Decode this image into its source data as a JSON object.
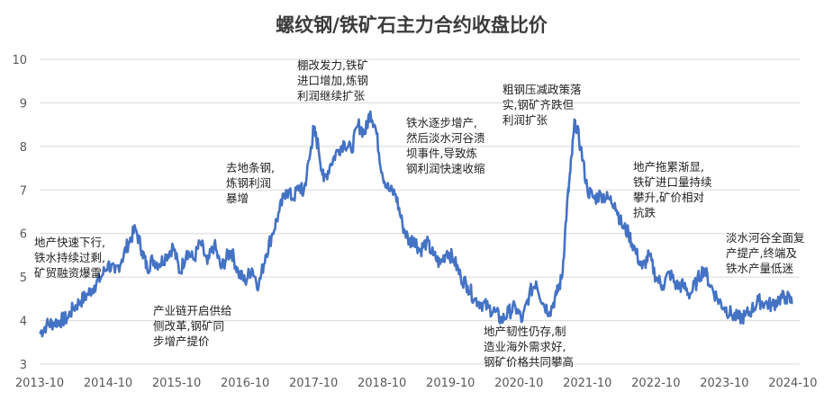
{
  "chart_data": {
    "type": "line",
    "title": "螺纹钢/铁矿石主力合约收盘比价",
    "xlabel": "",
    "ylabel": "",
    "ylim": [
      3,
      10
    ],
    "yticks": [
      3,
      4,
      5,
      6,
      7,
      8,
      9,
      10
    ],
    "xlim": [
      2013.75,
      2024.85
    ],
    "xticks": [
      {
        "label": "2013-10",
        "value": 2013.75
      },
      {
        "label": "2014-10",
        "value": 2014.75
      },
      {
        "label": "2015-10",
        "value": 2015.75
      },
      {
        "label": "2016-10",
        "value": 2016.75
      },
      {
        "label": "2017-10",
        "value": 2017.75
      },
      {
        "label": "2018-10",
        "value": 2018.75
      },
      {
        "label": "2019-10",
        "value": 2019.75
      },
      {
        "label": "2020-10",
        "value": 2020.75
      },
      {
        "label": "2021-10",
        "value": 2021.75
      },
      {
        "label": "2022-10",
        "value": 2022.75
      },
      {
        "label": "2023-10",
        "value": 2023.75
      },
      {
        "label": "2024-10",
        "value": 2024.75
      }
    ],
    "grid": "horizontal",
    "legend": "none",
    "color": "#4472c4",
    "series": [
      {
        "x": [
          2013.75,
          2013.85,
          2013.95,
          2014.05,
          2014.15,
          2014.25,
          2014.35,
          2014.45,
          2014.55,
          2014.65,
          2014.75,
          2014.85,
          2014.95,
          2015.05,
          2015.15,
          2015.25,
          2015.32,
          2015.4,
          2015.5,
          2015.6,
          2015.7,
          2015.8,
          2015.9,
          2016.0,
          2016.1,
          2016.2,
          2016.3,
          2016.4,
          2016.5,
          2016.55,
          2016.65,
          2016.75,
          2016.85,
          2016.95,
          2017.05,
          2017.15,
          2017.25,
          2017.35,
          2017.45,
          2017.55,
          2017.6,
          2017.7,
          2017.75,
          2017.82,
          2017.9,
          2018.0,
          2018.1,
          2018.2,
          2018.3,
          2018.4,
          2018.5,
          2018.58,
          2018.66,
          2018.75,
          2018.85,
          2018.95,
          2019.05,
          2019.15,
          2019.22,
          2019.3,
          2019.4,
          2019.5,
          2019.6,
          2019.7,
          2019.8,
          2019.9,
          2020.0,
          2020.1,
          2020.2,
          2020.3,
          2020.4,
          2020.5,
          2020.6,
          2020.7,
          2020.8,
          2020.9,
          2021.0,
          2021.1,
          2021.2,
          2021.3,
          2021.38,
          2021.45,
          2021.5,
          2021.57,
          2021.65,
          2021.75,
          2021.85,
          2021.95,
          2022.05,
          2022.15,
          2022.25,
          2022.35,
          2022.45,
          2022.55,
          2022.65,
          2022.75,
          2022.85,
          2022.95,
          2023.05,
          2023.15,
          2023.25,
          2023.35,
          2023.45,
          2023.55,
          2023.65,
          2023.75,
          2023.85,
          2023.95,
          2024.05,
          2024.15,
          2024.25,
          2024.35,
          2024.45,
          2024.55,
          2024.65,
          2024.75
        ],
        "y": [
          3.7,
          3.9,
          3.95,
          4.0,
          4.05,
          4.3,
          4.45,
          4.6,
          4.8,
          5.0,
          5.3,
          5.1,
          5.4,
          5.8,
          6.1,
          5.6,
          5.2,
          5.4,
          5.3,
          5.5,
          5.7,
          5.1,
          5.6,
          5.4,
          5.8,
          5.3,
          5.75,
          5.2,
          5.5,
          5.6,
          5.1,
          4.9,
          5.2,
          4.8,
          5.5,
          6.0,
          6.5,
          7.0,
          6.8,
          7.1,
          6.9,
          7.8,
          8.4,
          8.0,
          7.2,
          7.6,
          7.9,
          8.1,
          7.9,
          8.5,
          8.3,
          8.8,
          8.4,
          7.4,
          7.0,
          6.9,
          6.2,
          5.8,
          5.9,
          5.6,
          5.8,
          5.5,
          5.3,
          5.6,
          5.4,
          5.0,
          4.8,
          4.5,
          4.4,
          4.3,
          4.2,
          4.0,
          4.2,
          4.3,
          4.0,
          4.6,
          4.9,
          4.4,
          4.2,
          4.6,
          5.0,
          6.6,
          7.4,
          8.6,
          8.0,
          7.0,
          6.8,
          6.9,
          6.8,
          6.7,
          6.2,
          6.0,
          5.6,
          5.2,
          5.5,
          5.0,
          4.8,
          5.1,
          4.8,
          4.8,
          4.6,
          4.9,
          5.2,
          4.8,
          4.5,
          4.3,
          4.15,
          4.05,
          4.1,
          4.25,
          4.45,
          4.4,
          4.35,
          4.5,
          4.55,
          4.4
        ]
      }
    ],
    "annotations": [
      {
        "id": "a1",
        "lines": [
          "地产快速下行,",
          "铁水持续过剩,",
          "矿贸融资爆雷"
        ]
      },
      {
        "id": "a2",
        "lines": [
          "产业链开启供给",
          "侧改革,钢矿同",
          "步增产提价"
        ]
      },
      {
        "id": "a3",
        "lines": [
          "去地条钢,",
          "炼钢利润",
          "暴增"
        ]
      },
      {
        "id": "a4",
        "lines": [
          "棚改发力,铁矿",
          "进口增加,炼钢",
          "利润继续扩张"
        ]
      },
      {
        "id": "a5",
        "lines": [
          "铁水逐步增产,",
          "然后淡水河谷溃",
          "坝事件,导致炼",
          "钢利润快速收缩"
        ]
      },
      {
        "id": "a6",
        "lines": [
          "地产韧性仍存,制",
          "造业海外需求好,",
          "钢矿价格共同攀高"
        ]
      },
      {
        "id": "a7",
        "lines": [
          "粗钢压减政策落",
          "实,钢矿齐跌但",
          "利润扩张"
        ]
      },
      {
        "id": "a8",
        "lines": [
          "地产拖累渐显,",
          "铁矿进口量持续",
          "攀升,矿价相对",
          "抗跌"
        ]
      },
      {
        "id": "a9",
        "lines": [
          "淡水河谷全面复",
          "产提产,终端及",
          "铁水产量低迷"
        ]
      }
    ]
  }
}
